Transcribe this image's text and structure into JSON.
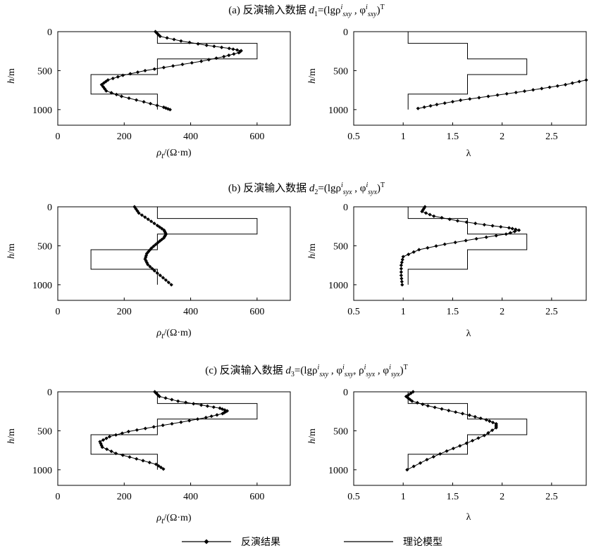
{
  "titles": {
    "a": {
      "prefix": "(a) 反演输入数据 ",
      "d": "d",
      "dsub": "1",
      "eq": "=(lgρ",
      "sup1": "i",
      "sub1": "sxy",
      "mid": " , φ",
      "sup2": "i",
      "sub2": "sxy",
      "end": ")",
      "T": "T"
    },
    "b": {
      "prefix": "(b) 反演输入数据 ",
      "d": "d",
      "dsub": "2",
      "eq": "=(lgρ",
      "sup1": "i",
      "sub1": "syx",
      "mid": " , φ",
      "sup2": "i",
      "sub2": "syx",
      "end": ")",
      "T": "T"
    },
    "c": {
      "prefix": "(c) 反演输入数据 ",
      "d": "d",
      "dsub": "3",
      "eq": "=(lgρ",
      "sup1": "i",
      "sub1": "sxy",
      "mid1": " , φ",
      "sup2": "i",
      "sub2": "sxy",
      "mid2": ", ρ",
      "sup3": "i",
      "sub3": "syx",
      "mid3": " , φ",
      "sup4": "i",
      "sub4": "syx",
      "end": ")",
      "T": "T"
    }
  },
  "labels": {
    "rho_x": {
      "sym": "ρ",
      "sub": "t",
      "unit": "/(Ω·m)"
    },
    "lambda_x": "λ",
    "h_y": {
      "sym": "h",
      "unit": "/m"
    }
  },
  "legend": {
    "inversion": "反演结果",
    "model": "理论模型"
  },
  "chart_data": [
    {
      "panel": "a-left",
      "type": "line",
      "xlabel": "ρt/(Ω·m)",
      "ylabel": "h/m",
      "xlim": [
        0,
        700
      ],
      "ylim": [
        1200,
        0
      ],
      "xticks": [
        0,
        200,
        400,
        600
      ],
      "yticks": [
        0,
        500,
        1000
      ],
      "series": [
        {
          "name": "理论模型",
          "style": "step",
          "x": [
            300,
            300,
            600,
            600,
            300,
            300,
            100,
            100,
            300,
            300
          ],
          "y": [
            0,
            150,
            150,
            350,
            350,
            550,
            550,
            800,
            800,
            1000
          ]
        },
        {
          "name": "反演结果",
          "style": "markers",
          "x": [
            294,
            308,
            371,
            448,
            516,
            552,
            545,
            500,
            432,
            347,
            263,
            196,
            151,
            132,
            146,
            192,
            259,
            319,
            338
          ],
          "y": [
            0,
            60,
            120,
            175,
            215,
            245,
            270,
            320,
            380,
            440,
            500,
            560,
            620,
            680,
            760,
            830,
            900,
            970,
            1000
          ]
        }
      ]
    },
    {
      "panel": "a-right",
      "type": "line",
      "xlabel": "λ",
      "ylabel": "h/m",
      "xlim": [
        0.5,
        2.85
      ],
      "ylim": [
        1200,
        0
      ],
      "xticks": [
        0.5,
        1,
        1.5,
        2,
        2.5
      ],
      "yticks": [
        0,
        500,
        1000
      ],
      "series": [
        {
          "name": "理论模型",
          "style": "step",
          "x": [
            1.05,
            1.05,
            1.65,
            1.65,
            2.25,
            2.25,
            1.65,
            1.65,
            1.05,
            1.05
          ],
          "y": [
            0,
            150,
            150,
            350,
            350,
            550,
            550,
            800,
            800,
            1000
          ]
        },
        {
          "name": "反演结果",
          "style": "markers",
          "x": [
            1.15,
            1.34,
            1.58,
            1.86,
            2.14,
            2.4,
            2.64,
            2.85
          ],
          "y": [
            985,
            935,
            880,
            830,
            780,
            730,
            680,
            620
          ]
        }
      ]
    },
    {
      "panel": "b-left",
      "type": "line",
      "xlabel": "ρt/(Ω·m)",
      "ylabel": "h/m",
      "xlim": [
        0,
        700
      ],
      "ylim": [
        1200,
        0
      ],
      "xticks": [
        0,
        200,
        400,
        600
      ],
      "yticks": [
        0,
        500,
        1000
      ],
      "series": [
        {
          "name": "理论模型",
          "style": "step",
          "x": [
            300,
            300,
            600,
            600,
            300,
            300,
            100,
            100,
            300,
            300
          ],
          "y": [
            0,
            150,
            150,
            350,
            350,
            550,
            550,
            800,
            800,
            1000
          ]
        },
        {
          "name": "反演结果",
          "style": "markers",
          "x": [
            231,
            244,
            272,
            300,
            320,
            326,
            319,
            301,
            282,
            268,
            263,
            271,
            291,
            317,
            342
          ],
          "y": [
            0,
            80,
            160,
            240,
            300,
            350,
            400,
            460,
            530,
            600,
            670,
            740,
            820,
            910,
            1000
          ]
        }
      ]
    },
    {
      "panel": "b-right",
      "type": "line",
      "xlabel": "λ",
      "ylabel": "h/m",
      "xlim": [
        0.5,
        2.85
      ],
      "ylim": [
        1200,
        0
      ],
      "xticks": [
        0.5,
        1,
        1.5,
        2,
        2.5
      ],
      "yticks": [
        0,
        500,
        1000
      ],
      "series": [
        {
          "name": "理论模型",
          "style": "step",
          "x": [
            1.05,
            1.05,
            1.65,
            1.65,
            2.25,
            2.25,
            1.65,
            1.65,
            1.05,
            1.05
          ],
          "y": [
            0,
            150,
            150,
            350,
            350,
            550,
            550,
            800,
            800,
            1000
          ]
        },
        {
          "name": "反演结果",
          "style": "markers",
          "x": [
            1.22,
            1.19,
            1.31,
            1.55,
            1.82,
            2.07,
            2.17,
            2.04,
            1.74,
            1.42,
            1.16,
            1.0,
            0.98,
            0.98,
            0.99
          ],
          "y": [
            0,
            60,
            120,
            180,
            230,
            270,
            300,
            350,
            410,
            480,
            550,
            640,
            750,
            880,
            1000
          ]
        }
      ]
    },
    {
      "panel": "c-left",
      "type": "line",
      "xlabel": "ρt/(Ω·m)",
      "ylabel": "h/m",
      "xlim": [
        0,
        700
      ],
      "ylim": [
        1200,
        0
      ],
      "xticks": [
        0,
        200,
        400,
        600
      ],
      "yticks": [
        0,
        500,
        1000
      ],
      "series": [
        {
          "name": "理论模型",
          "style": "step",
          "x": [
            300,
            300,
            600,
            600,
            300,
            300,
            100,
            100,
            300,
            300
          ],
          "y": [
            0,
            150,
            150,
            350,
            350,
            550,
            550,
            800,
            800,
            1000
          ]
        },
        {
          "name": "反演结果",
          "style": "markers",
          "x": [
            292,
            306,
            362,
            432,
            488,
            510,
            496,
            446,
            371,
            289,
            213,
            156,
            127,
            134,
            175,
            237,
            296,
            318
          ],
          "y": [
            0,
            60,
            120,
            170,
            210,
            245,
            280,
            330,
            390,
            450,
            510,
            575,
            640,
            710,
            790,
            860,
            930,
            990
          ]
        }
      ]
    },
    {
      "panel": "c-right",
      "type": "line",
      "xlabel": "λ",
      "ylabel": "h/m",
      "xlim": [
        0.5,
        2.85
      ],
      "ylim": [
        1200,
        0
      ],
      "xticks": [
        0.5,
        1,
        1.5,
        2,
        2.5
      ],
      "yticks": [
        0,
        500,
        1000
      ],
      "series": [
        {
          "name": "理论模型",
          "style": "step",
          "x": [
            1.05,
            1.05,
            1.65,
            1.65,
            2.25,
            2.25,
            1.65,
            1.65,
            1.05,
            1.05
          ],
          "y": [
            0,
            150,
            150,
            350,
            350,
            550,
            550,
            800,
            800,
            1000
          ]
        },
        {
          "name": "反演结果",
          "style": "markers",
          "x": [
            1.1,
            1.03,
            1.09,
            1.25,
            1.46,
            1.67,
            1.84,
            1.94,
            1.94,
            1.82,
            1.64,
            1.44,
            1.24,
            1.04
          ],
          "y": [
            0,
            60,
            120,
            180,
            240,
            300,
            360,
            410,
            460,
            560,
            660,
            760,
            870,
            1000
          ]
        }
      ]
    }
  ]
}
